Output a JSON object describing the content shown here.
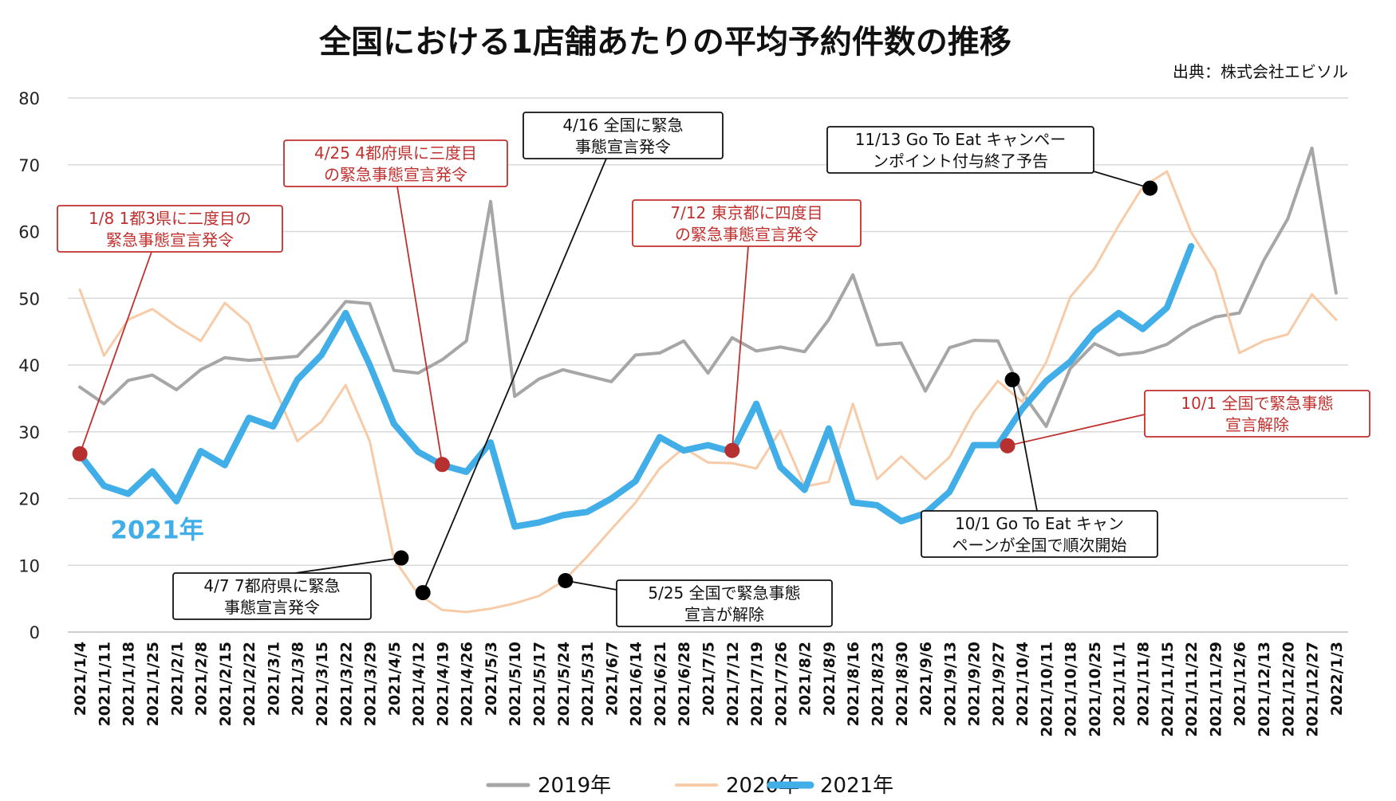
{
  "chart_data": {
    "type": "line",
    "title": "全国における1店舗あたりの平均予約件数の推移",
    "source": "出典：株式会社エビソル",
    "ylim": [
      0,
      80
    ],
    "yticks": [
      "0",
      "10",
      "20",
      "30",
      "40",
      "50",
      "60",
      "70",
      "80"
    ],
    "grid": true,
    "legend_position": "bottom",
    "categories": [
      "2021/1/4",
      "2021/1/11",
      "2021/1/18",
      "2021/1/25",
      "2021/2/1",
      "2021/2/8",
      "2021/2/15",
      "2021/2/22",
      "2021/3/1",
      "2021/3/8",
      "2021/3/15",
      "2021/3/22",
      "2021/3/29",
      "2021/4/5",
      "2021/4/12",
      "2021/4/19",
      "2021/4/26",
      "2021/5/3",
      "2021/5/10",
      "2021/5/17",
      "2021/5/24",
      "2021/5/31",
      "2021/6/7",
      "2021/6/14",
      "2021/6/21",
      "2021/6/28",
      "2021/7/5",
      "2021/7/12",
      "2021/7/19",
      "2021/7/26",
      "2021/8/2",
      "2021/8/9",
      "2021/8/16",
      "2021/8/23",
      "2021/8/30",
      "2021/9/6",
      "2021/9/13",
      "2021/9/20",
      "2021/9/27",
      "2021/10/4",
      "2021/10/11",
      "2021/10/18",
      "2021/10/25",
      "2021/11/1",
      "2021/11/8",
      "2021/11/15",
      "2021/11/22",
      "2021/11/29",
      "2021/12/6",
      "2021/12/13",
      "2021/12/20",
      "2021/12/27",
      "2022/1/3"
    ],
    "series": [
      {
        "name": "2019年",
        "color": "#a6a6a6",
        "width": 4,
        "values": [
          36.7,
          34.2,
          37.7,
          38.5,
          36.3,
          39.3,
          41.1,
          40.7,
          41.0,
          41.3,
          45.1,
          49.5,
          49.2,
          39.2,
          38.8,
          40.8,
          43.6,
          64.5,
          35.3,
          37.9,
          39.3,
          38.4,
          37.5,
          41.5,
          41.8,
          43.6,
          38.8,
          44.1,
          42.1,
          42.7,
          42.0,
          46.8,
          53.5,
          43.0,
          43.3,
          36.1,
          42.6,
          43.7,
          43.6,
          35.9,
          30.8,
          39.5,
          43.2,
          41.5,
          41.9,
          43.1,
          45.6,
          47.2,
          47.8,
          55.6,
          61.9,
          72.5,
          50.8
        ]
      },
      {
        "name": "2020年",
        "color": "#f7cba8",
        "width": 3,
        "values": [
          51.3,
          41.4,
          46.8,
          48.4,
          45.8,
          43.6,
          49.3,
          46.2,
          37.1,
          28.6,
          31.5,
          37.0,
          28.6,
          11.0,
          5.7,
          3.3,
          3.0,
          3.5,
          4.3,
          5.4,
          7.6,
          11.3,
          15.4,
          19.4,
          24.5,
          27.6,
          25.4,
          25.3,
          24.5,
          30.2,
          21.8,
          22.5,
          34.2,
          22.9,
          26.3,
          22.9,
          26.2,
          32.9,
          37.6,
          34.5,
          40.4,
          50.2,
          54.5,
          60.9,
          66.7,
          69.0,
          59.9,
          54.1,
          41.8,
          43.6,
          44.6,
          50.6,
          46.8
        ]
      },
      {
        "name": "2021年",
        "color": "#41aee8",
        "width": 8,
        "values": [
          26.6,
          21.9,
          20.7,
          24.1,
          19.6,
          27.1,
          25.0,
          32.1,
          30.8,
          37.8,
          41.5,
          47.8,
          40.0,
          31.2,
          27.0,
          25.0,
          24.0,
          28.4,
          15.8,
          16.4,
          17.5,
          18.0,
          20.0,
          22.6,
          29.2,
          27.2,
          28.0,
          27.0,
          34.2,
          24.7,
          21.3,
          30.5,
          19.4,
          19.0,
          16.6,
          17.8,
          21.0,
          28.0,
          28.0,
          33.4,
          37.6,
          40.5,
          45.0,
          47.8,
          45.4,
          48.6,
          57.8,
          null,
          null,
          null,
          null,
          null,
          null
        ]
      }
    ],
    "series_annotation": {
      "text": "2021年",
      "index": 3.2,
      "value": 15.2,
      "color": "#41aee8"
    },
    "annotations": [
      {
        "lines": [
          "1/8  1都3県に二度目の",
          "緊急事態宣言発令"
        ],
        "color": "#c0302e",
        "marker": {
          "index": 0,
          "value": 26.7,
          "color": "#b5302e"
        }
      },
      {
        "lines": [
          "4/25  4都府県に三度目",
          "の緊急事態宣言発令"
        ],
        "color": "#c0302e",
        "marker": {
          "index": 15,
          "value": 25.1,
          "color": "#b5302e"
        }
      },
      {
        "lines": [
          "4/16  全国に緊急",
          "事態宣言発令"
        ],
        "color": "#111111",
        "marker": {
          "index": 14.2,
          "value": 5.9,
          "color": "#000000"
        }
      },
      {
        "lines": [
          "7/12  東京都に四度目",
          "の緊急事態宣言発令"
        ],
        "color": "#c0302e",
        "marker": {
          "index": 27,
          "value": 27.2,
          "color": "#b5302e"
        }
      },
      {
        "lines": [
          "11/13  Go To Eat キャンペー",
          "ンポイント付与終了予告"
        ],
        "color": "#111111",
        "marker": {
          "index": 44.3,
          "value": 66.5,
          "color": "#000000"
        }
      },
      {
        "lines": [
          "10/1  全国で緊急事態",
          "宣言解除"
        ],
        "color": "#c0302e",
        "marker": {
          "index": 38.4,
          "value": 27.9,
          "color": "#b5302e"
        }
      },
      {
        "lines": [
          "10/1  Go To Eat キャン",
          "ペーンが全国で順次開始"
        ],
        "color": "#111111",
        "marker": {
          "index": 38.6,
          "value": 37.8,
          "color": "#000000"
        }
      },
      {
        "lines": [
          "4/7  7都府県に緊急",
          "事態宣言発令"
        ],
        "color": "#111111",
        "marker": {
          "index": 13.3,
          "value": 11.1,
          "color": "#000000"
        }
      },
      {
        "lines": [
          "5/25  全国で緊急事態",
          "宣言が解除"
        ],
        "color": "#111111",
        "marker": {
          "index": 20.1,
          "value": 7.7,
          "color": "#000000"
        }
      }
    ]
  }
}
